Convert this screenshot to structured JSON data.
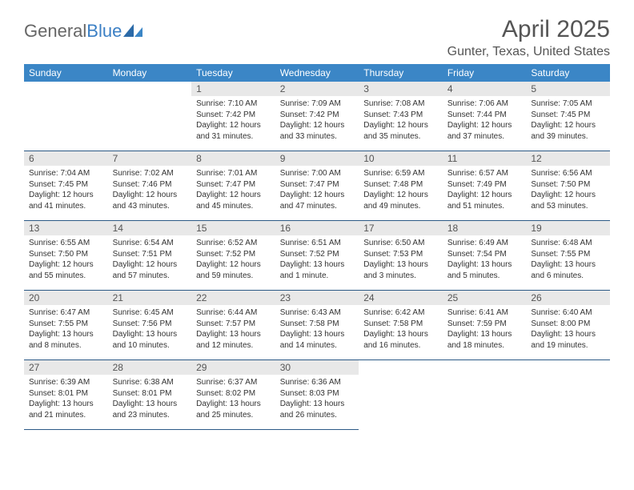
{
  "brand": {
    "part1": "General",
    "part2": "Blue"
  },
  "title": "April 2025",
  "location": "Gunter, Texas, United States",
  "colors": {
    "header_bg": "#3b86c6",
    "header_fg": "#ffffff",
    "daynum_bg": "#e8e8e8",
    "rule": "#2c5a86",
    "logo_accent": "#3b7fc4"
  },
  "day_headers": [
    "Sunday",
    "Monday",
    "Tuesday",
    "Wednesday",
    "Thursday",
    "Friday",
    "Saturday"
  ],
  "weeks": [
    [
      null,
      null,
      {
        "n": "1",
        "sr": "7:10 AM",
        "ss": "7:42 PM",
        "dl": "12 hours and 31 minutes."
      },
      {
        "n": "2",
        "sr": "7:09 AM",
        "ss": "7:42 PM",
        "dl": "12 hours and 33 minutes."
      },
      {
        "n": "3",
        "sr": "7:08 AM",
        "ss": "7:43 PM",
        "dl": "12 hours and 35 minutes."
      },
      {
        "n": "4",
        "sr": "7:06 AM",
        "ss": "7:44 PM",
        "dl": "12 hours and 37 minutes."
      },
      {
        "n": "5",
        "sr": "7:05 AM",
        "ss": "7:45 PM",
        "dl": "12 hours and 39 minutes."
      }
    ],
    [
      {
        "n": "6",
        "sr": "7:04 AM",
        "ss": "7:45 PM",
        "dl": "12 hours and 41 minutes."
      },
      {
        "n": "7",
        "sr": "7:02 AM",
        "ss": "7:46 PM",
        "dl": "12 hours and 43 minutes."
      },
      {
        "n": "8",
        "sr": "7:01 AM",
        "ss": "7:47 PM",
        "dl": "12 hours and 45 minutes."
      },
      {
        "n": "9",
        "sr": "7:00 AM",
        "ss": "7:47 PM",
        "dl": "12 hours and 47 minutes."
      },
      {
        "n": "10",
        "sr": "6:59 AM",
        "ss": "7:48 PM",
        "dl": "12 hours and 49 minutes."
      },
      {
        "n": "11",
        "sr": "6:57 AM",
        "ss": "7:49 PM",
        "dl": "12 hours and 51 minutes."
      },
      {
        "n": "12",
        "sr": "6:56 AM",
        "ss": "7:50 PM",
        "dl": "12 hours and 53 minutes."
      }
    ],
    [
      {
        "n": "13",
        "sr": "6:55 AM",
        "ss": "7:50 PM",
        "dl": "12 hours and 55 minutes."
      },
      {
        "n": "14",
        "sr": "6:54 AM",
        "ss": "7:51 PM",
        "dl": "12 hours and 57 minutes."
      },
      {
        "n": "15",
        "sr": "6:52 AM",
        "ss": "7:52 PM",
        "dl": "12 hours and 59 minutes."
      },
      {
        "n": "16",
        "sr": "6:51 AM",
        "ss": "7:52 PM",
        "dl": "13 hours and 1 minute."
      },
      {
        "n": "17",
        "sr": "6:50 AM",
        "ss": "7:53 PM",
        "dl": "13 hours and 3 minutes."
      },
      {
        "n": "18",
        "sr": "6:49 AM",
        "ss": "7:54 PM",
        "dl": "13 hours and 5 minutes."
      },
      {
        "n": "19",
        "sr": "6:48 AM",
        "ss": "7:55 PM",
        "dl": "13 hours and 6 minutes."
      }
    ],
    [
      {
        "n": "20",
        "sr": "6:47 AM",
        "ss": "7:55 PM",
        "dl": "13 hours and 8 minutes."
      },
      {
        "n": "21",
        "sr": "6:45 AM",
        "ss": "7:56 PM",
        "dl": "13 hours and 10 minutes."
      },
      {
        "n": "22",
        "sr": "6:44 AM",
        "ss": "7:57 PM",
        "dl": "13 hours and 12 minutes."
      },
      {
        "n": "23",
        "sr": "6:43 AM",
        "ss": "7:58 PM",
        "dl": "13 hours and 14 minutes."
      },
      {
        "n": "24",
        "sr": "6:42 AM",
        "ss": "7:58 PM",
        "dl": "13 hours and 16 minutes."
      },
      {
        "n": "25",
        "sr": "6:41 AM",
        "ss": "7:59 PM",
        "dl": "13 hours and 18 minutes."
      },
      {
        "n": "26",
        "sr": "6:40 AM",
        "ss": "8:00 PM",
        "dl": "13 hours and 19 minutes."
      }
    ],
    [
      {
        "n": "27",
        "sr": "6:39 AM",
        "ss": "8:01 PM",
        "dl": "13 hours and 21 minutes."
      },
      {
        "n": "28",
        "sr": "6:38 AM",
        "ss": "8:01 PM",
        "dl": "13 hours and 23 minutes."
      },
      {
        "n": "29",
        "sr": "6:37 AM",
        "ss": "8:02 PM",
        "dl": "13 hours and 25 minutes."
      },
      {
        "n": "30",
        "sr": "6:36 AM",
        "ss": "8:03 PM",
        "dl": "13 hours and 26 minutes."
      },
      null,
      null,
      null
    ]
  ],
  "labels": {
    "sunrise": "Sunrise:",
    "sunset": "Sunset:",
    "daylight": "Daylight:"
  }
}
